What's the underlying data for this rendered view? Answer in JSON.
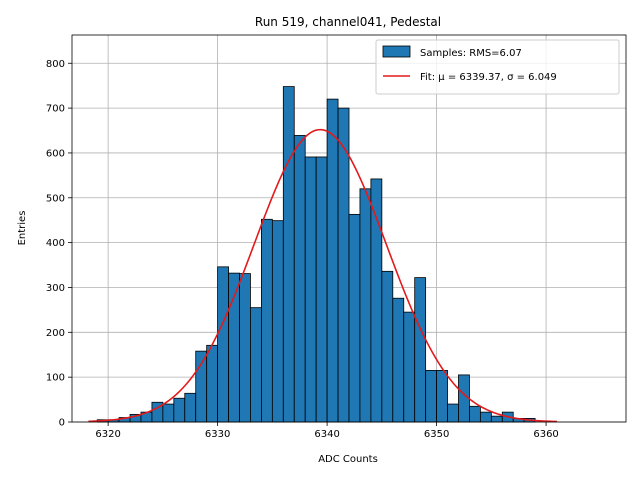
{
  "chart_data": {
    "type": "bar",
    "title": "Run 519, channel041, Pedestal",
    "xlabel": "ADC Counts",
    "ylabel": "Entries",
    "xlim": [
      6316.7,
      6367.3
    ],
    "ylim": [
      0,
      863
    ],
    "xticks": [
      6320,
      6330,
      6340,
      6350,
      6360
    ],
    "yticks": [
      0,
      100,
      200,
      300,
      400,
      500,
      600,
      700,
      800
    ],
    "grid": true,
    "legend_position": "top-right",
    "bin_edges": [
      6319.0,
      6320.0,
      6321.0,
      6322.0,
      6323.0,
      6324.0,
      6325.0,
      6326.0,
      6327.0,
      6328.0,
      6329.0,
      6330.0,
      6331.0,
      6332.0,
      6333.0,
      6334.0,
      6335.0,
      6336.0,
      6337.0,
      6338.0,
      6339.0,
      6340.0,
      6341.0,
      6342.0,
      6343.0,
      6344.0,
      6345.0,
      6346.0,
      6347.0,
      6348.0,
      6349.0,
      6350.0,
      6351.0,
      6352.0,
      6353.0,
      6354.0,
      6355.0,
      6356.0,
      6357.0,
      6358.0,
      6359.0
    ],
    "counts": [
      5,
      5,
      10,
      17,
      22,
      44,
      40,
      53,
      64,
      158,
      171,
      346,
      332,
      331,
      255,
      452,
      449,
      748,
      639,
      591,
      591,
      720,
      700,
      463,
      520,
      542,
      336,
      276,
      245,
      322,
      115,
      115,
      40,
      105,
      35,
      22,
      13,
      22,
      8,
      8
    ],
    "series": [
      {
        "name": "Samples: RMS=6.07",
        "kind": "histogram",
        "color": "#1f77b4",
        "edgecolor": "#000000"
      },
      {
        "name": "Fit: μ = 6339.37, σ = 6.049",
        "kind": "line",
        "color": "#e31a1c",
        "mu": 6339.37,
        "sigma": 6.049,
        "amplitude": 652,
        "x_range": [
          6318.2,
          6361.0
        ]
      }
    ]
  }
}
